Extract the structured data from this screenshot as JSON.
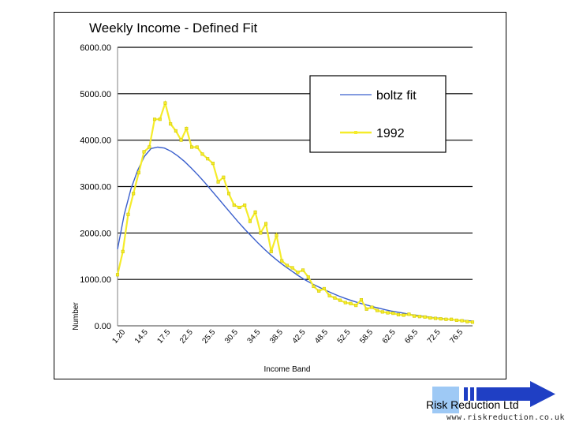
{
  "chart_data": {
    "type": "line",
    "title": "Weekly Income - Defined Fit",
    "xlabel": "Income Band",
    "ylabel": "Number",
    "ylim": [
      0,
      6000
    ],
    "yticks": [
      "6000.00",
      "5000.00",
      "4000.00",
      "3000.00",
      "2000.00",
      "1000.00",
      "0.00"
    ],
    "grid": true,
    "legend_position": "top-right",
    "x_tick_labels": [
      "1.20",
      "14.5",
      "17.5",
      "22.5",
      "25.5",
      "30.5",
      "34.5",
      "38.5",
      "42.5",
      "48.5",
      "52.5",
      "58.5",
      "62.5",
      "66.5",
      "72.5",
      "76.5"
    ],
    "series": [
      {
        "name": "boltz fit",
        "color": "#3a5fcd",
        "marker": "none",
        "values": [
          1650,
          2400,
          2950,
          3350,
          3650,
          3820,
          3850,
          3830,
          3760,
          3660,
          3540,
          3400,
          3250,
          3090,
          2920,
          2750,
          2580,
          2410,
          2240,
          2080,
          1930,
          1780,
          1640,
          1510,
          1390,
          1280,
          1180,
          1080,
          990,
          910,
          840,
          770,
          705,
          645,
          590,
          540,
          495,
          455,
          415,
          380,
          345,
          315,
          290,
          265,
          240,
          220,
          200,
          180,
          165,
          150,
          135,
          122,
          110,
          100
        ]
      },
      {
        "name": "1992",
        "color": "#f5ec2a",
        "marker": "square",
        "values": [
          1100,
          1600,
          2400,
          2850,
          3300,
          3750,
          3850,
          4450,
          4450,
          4800,
          4350,
          4200,
          4000,
          4250,
          3850,
          3850,
          3700,
          3600,
          3500,
          3100,
          3200,
          2850,
          2600,
          2550,
          2600,
          2250,
          2450,
          2000,
          2200,
          1600,
          1950,
          1400,
          1300,
          1250,
          1150,
          1200,
          1050,
          850,
          750,
          800,
          650,
          600,
          550,
          500,
          480,
          440,
          560,
          360,
          400,
          330,
          300,
          280,
          270,
          240,
          230,
          250,
          210,
          200,
          190,
          170,
          160,
          150,
          140,
          140,
          120,
          110,
          90,
          80
        ]
      }
    ]
  },
  "logo": {
    "company": "Risk Reduction Ltd",
    "url": "www.riskreduction.co.uk"
  },
  "colors": {
    "logo_blue": "#1f3fc4",
    "logo_light_blue": "#9ec9f5",
    "gridline": "#000000",
    "plot_border": "#808080"
  }
}
